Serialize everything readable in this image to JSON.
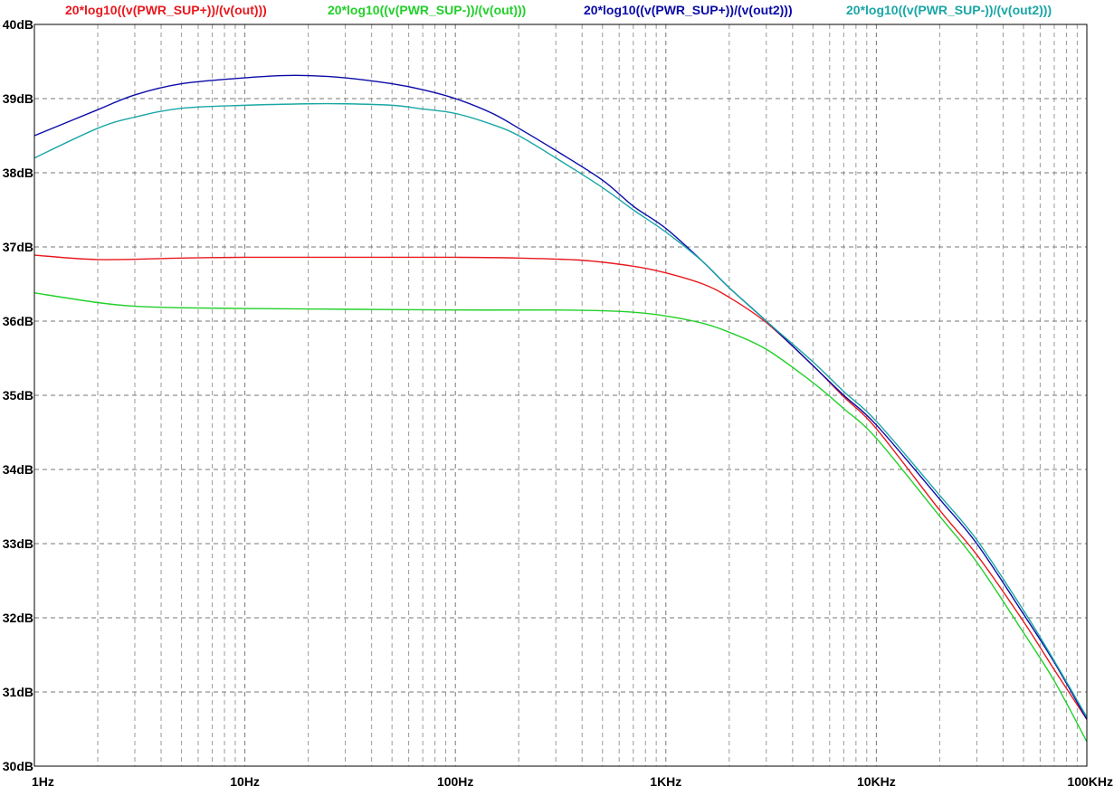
{
  "chart_data": {
    "type": "line",
    "title": "",
    "xlabel": "",
    "ylabel": "",
    "x_scale": "log",
    "xlim": [
      1,
      100000
    ],
    "ylim": [
      30,
      40
    ],
    "grid": true,
    "legend_placement": "top",
    "x_ticks": [
      {
        "value": 1,
        "label": "1Hz"
      },
      {
        "value": 10,
        "label": "10Hz"
      },
      {
        "value": 100,
        "label": "100Hz"
      },
      {
        "value": 1000,
        "label": "1KHz"
      },
      {
        "value": 10000,
        "label": "10KHz"
      },
      {
        "value": 100000,
        "label": "100KHz"
      }
    ],
    "y_ticks": [
      {
        "value": 30,
        "label": "30dB"
      },
      {
        "value": 31,
        "label": "31dB"
      },
      {
        "value": 32,
        "label": "32dB"
      },
      {
        "value": 33,
        "label": "33dB"
      },
      {
        "value": 34,
        "label": "34dB"
      },
      {
        "value": 35,
        "label": "35dB"
      },
      {
        "value": 36,
        "label": "36dB"
      },
      {
        "value": 37,
        "label": "37dB"
      },
      {
        "value": 38,
        "label": "38dB"
      },
      {
        "value": 39,
        "label": "39dB"
      },
      {
        "value": 40,
        "label": "40dB"
      }
    ],
    "series": [
      {
        "name": "20*log10((v(PWR_SUP+))/(v(out)))",
        "color": "#e8191e",
        "points": [
          [
            1,
            36.89
          ],
          [
            2,
            36.83
          ],
          [
            5,
            36.85
          ],
          [
            10,
            36.86
          ],
          [
            30,
            36.86
          ],
          [
            100,
            36.86
          ],
          [
            200,
            36.85
          ],
          [
            400,
            36.82
          ],
          [
            700,
            36.74
          ],
          [
            1000,
            36.65
          ],
          [
            1500,
            36.5
          ],
          [
            2000,
            36.32
          ],
          [
            3000,
            35.98
          ],
          [
            5000,
            35.4
          ],
          [
            7000,
            34.98
          ],
          [
            10000,
            34.55
          ],
          [
            20000,
            33.45
          ],
          [
            30000,
            32.85
          ],
          [
            50000,
            31.95
          ],
          [
            70000,
            31.3
          ],
          [
            100000,
            30.63
          ]
        ]
      },
      {
        "name": "20*log10((v(PWR_SUP-))/(v(out)))",
        "color": "#22d02a",
        "points": [
          [
            1,
            36.38
          ],
          [
            2,
            36.25
          ],
          [
            3,
            36.2
          ],
          [
            5,
            36.18
          ],
          [
            10,
            36.17
          ],
          [
            30,
            36.16
          ],
          [
            100,
            36.15
          ],
          [
            300,
            36.15
          ],
          [
            500,
            36.14
          ],
          [
            700,
            36.12
          ],
          [
            1000,
            36.07
          ],
          [
            1500,
            35.97
          ],
          [
            2000,
            35.85
          ],
          [
            3000,
            35.62
          ],
          [
            5000,
            35.17
          ],
          [
            7000,
            34.82
          ],
          [
            10000,
            34.42
          ],
          [
            20000,
            33.37
          ],
          [
            30000,
            32.75
          ],
          [
            50000,
            31.8
          ],
          [
            70000,
            31.15
          ],
          [
            100000,
            30.33
          ]
        ]
      },
      {
        "name": "20*log10((v(PWR_SUP+))/(v(out2)))",
        "color": "#0a0aa8",
        "points": [
          [
            1,
            38.5
          ],
          [
            2,
            38.85
          ],
          [
            3,
            39.05
          ],
          [
            5,
            39.2
          ],
          [
            10,
            39.28
          ],
          [
            15,
            39.31
          ],
          [
            20,
            39.31
          ],
          [
            30,
            39.28
          ],
          [
            50,
            39.2
          ],
          [
            70,
            39.12
          ],
          [
            100,
            39.0
          ],
          [
            150,
            38.8
          ],
          [
            200,
            38.6
          ],
          [
            300,
            38.3
          ],
          [
            500,
            37.9
          ],
          [
            700,
            37.55
          ],
          [
            1000,
            37.25
          ],
          [
            1500,
            36.8
          ],
          [
            2000,
            36.45
          ],
          [
            3000,
            36.0
          ],
          [
            5000,
            35.4
          ],
          [
            7000,
            35.0
          ],
          [
            10000,
            34.6
          ],
          [
            20000,
            33.6
          ],
          [
            30000,
            33.0
          ],
          [
            50000,
            32.05
          ],
          [
            70000,
            31.4
          ],
          [
            100000,
            30.63
          ]
        ]
      },
      {
        "name": "20*log10((v(PWR_SUP-))/(v(out2)))",
        "color": "#1aa6a6",
        "points": [
          [
            1,
            38.2
          ],
          [
            2,
            38.6
          ],
          [
            3,
            38.75
          ],
          [
            5,
            38.87
          ],
          [
            10,
            38.91
          ],
          [
            20,
            38.93
          ],
          [
            30,
            38.93
          ],
          [
            50,
            38.91
          ],
          [
            70,
            38.86
          ],
          [
            100,
            38.8
          ],
          [
            150,
            38.65
          ],
          [
            200,
            38.5
          ],
          [
            300,
            38.2
          ],
          [
            500,
            37.8
          ],
          [
            700,
            37.5
          ],
          [
            1000,
            37.2
          ],
          [
            1500,
            36.8
          ],
          [
            2000,
            36.45
          ],
          [
            3000,
            36.0
          ],
          [
            5000,
            35.45
          ],
          [
            7000,
            35.05
          ],
          [
            10000,
            34.65
          ],
          [
            20000,
            33.65
          ],
          [
            30000,
            33.05
          ],
          [
            50000,
            32.1
          ],
          [
            70000,
            31.42
          ],
          [
            100000,
            30.66
          ]
        ]
      }
    ]
  }
}
